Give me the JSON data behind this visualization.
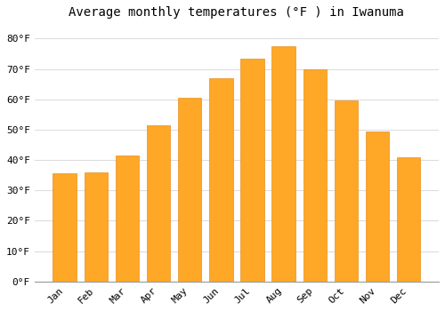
{
  "title": "Average monthly temperatures (°F ) in Iwanuma",
  "months": [
    "Jan",
    "Feb",
    "Mar",
    "Apr",
    "May",
    "Jun",
    "Jul",
    "Aug",
    "Sep",
    "Oct",
    "Nov",
    "Dec"
  ],
  "values": [
    35.5,
    36.0,
    41.5,
    51.5,
    60.5,
    67.0,
    73.5,
    77.5,
    70.0,
    59.5,
    49.5,
    41.0
  ],
  "bar_color": "#FFA726",
  "bar_edge_color": "#E69020",
  "background_color": "#FFFFFF",
  "grid_color": "#DDDDDD",
  "ylim": [
    0,
    85
  ],
  "yticks": [
    0,
    10,
    20,
    30,
    40,
    50,
    60,
    70,
    80
  ],
  "title_fontsize": 10,
  "tick_fontsize": 8,
  "bar_width": 0.75
}
